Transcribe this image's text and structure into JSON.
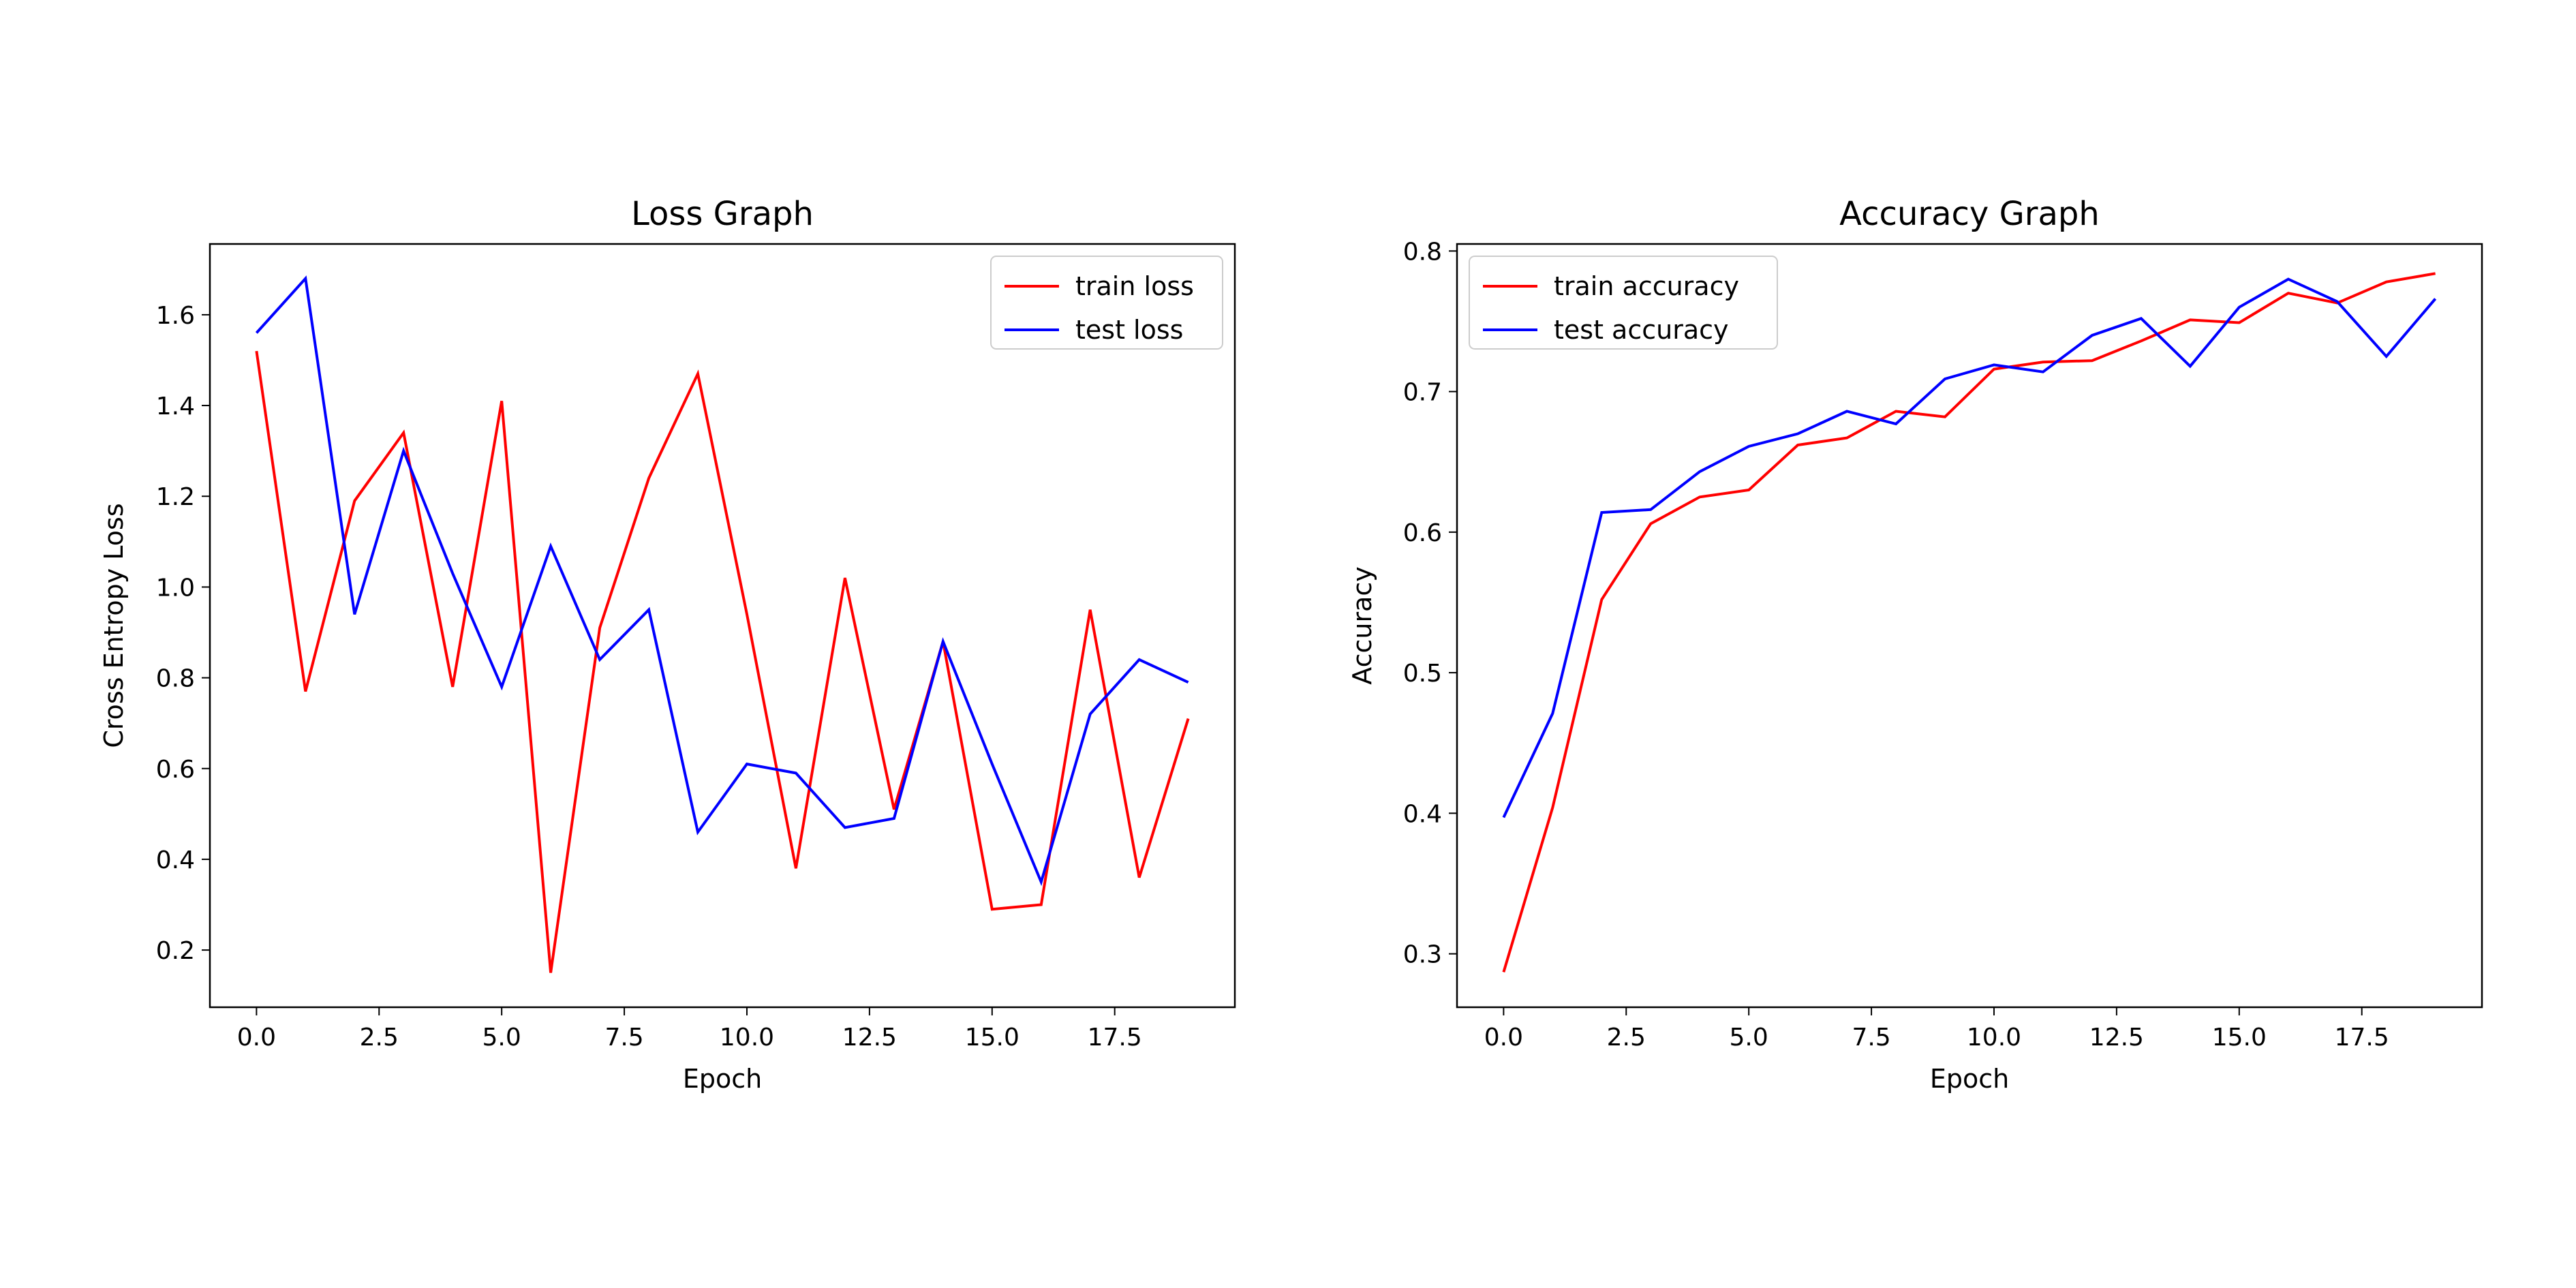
{
  "chart_data": [
    {
      "type": "line",
      "title": "Loss Graph",
      "xlabel": "Epoch",
      "ylabel": "Cross Entropy Loss",
      "xlim": [
        -0.95,
        19.95
      ],
      "ylim": [
        0.074,
        1.756
      ],
      "xticks": [
        0,
        2.5,
        5,
        7.5,
        10,
        12.5,
        15,
        17.5
      ],
      "xtick_labels": [
        "0.0",
        "2.5",
        "5.0",
        "7.5",
        "10.0",
        "12.5",
        "15.0",
        "17.5"
      ],
      "yticks": [
        0.2,
        0.4,
        0.6,
        0.8,
        1.0,
        1.2,
        1.4,
        1.6
      ],
      "ytick_labels": [
        "0.2",
        "0.4",
        "0.6",
        "0.8",
        "1.0",
        "1.2",
        "1.4",
        "1.6"
      ],
      "legend_position": "top-right",
      "grid": false,
      "x": [
        0,
        1,
        2,
        3,
        4,
        5,
        6,
        7,
        8,
        9,
        10,
        11,
        12,
        13,
        14,
        15,
        16,
        17,
        18,
        19
      ],
      "series": [
        {
          "name": "train loss",
          "color": "#ff0000",
          "values": [
            1.52,
            0.77,
            1.19,
            1.34,
            0.78,
            1.41,
            0.15,
            0.91,
            1.24,
            1.47,
            0.94,
            0.38,
            1.02,
            0.51,
            0.88,
            0.29,
            0.3,
            0.95,
            0.36,
            0.71
          ]
        },
        {
          "name": "test loss",
          "color": "#0000ff",
          "values": [
            1.56,
            1.68,
            0.94,
            1.3,
            1.03,
            0.78,
            1.09,
            0.84,
            0.95,
            0.46,
            0.61,
            0.59,
            0.47,
            0.49,
            0.88,
            0.61,
            0.35,
            0.72,
            0.84,
            0.79
          ]
        }
      ]
    },
    {
      "type": "line",
      "title": "Accuracy Graph",
      "xlabel": "Epoch",
      "ylabel": "Accuracy",
      "xlim": [
        -0.95,
        19.95
      ],
      "ylim": [
        0.262,
        0.805
      ],
      "xticks": [
        0,
        2.5,
        5,
        7.5,
        10,
        12.5,
        15,
        17.5
      ],
      "xtick_labels": [
        "0.0",
        "2.5",
        "5.0",
        "7.5",
        "10.0",
        "12.5",
        "15.0",
        "17.5"
      ],
      "yticks": [
        0.3,
        0.4,
        0.5,
        0.6,
        0.7,
        0.8
      ],
      "ytick_labels": [
        "0.3",
        "0.4",
        "0.5",
        "0.6",
        "0.7",
        "0.8"
      ],
      "legend_position": "top-left",
      "grid": false,
      "x": [
        0,
        1,
        2,
        3,
        4,
        5,
        6,
        7,
        8,
        9,
        10,
        11,
        12,
        13,
        14,
        15,
        16,
        17,
        18,
        19
      ],
      "series": [
        {
          "name": "train accuracy",
          "color": "#ff0000",
          "values": [
            0.287,
            0.404,
            0.552,
            0.606,
            0.625,
            0.63,
            0.662,
            0.667,
            0.686,
            0.682,
            0.716,
            0.721,
            0.722,
            0.736,
            0.751,
            0.749,
            0.77,
            0.763,
            0.778,
            0.784
          ]
        },
        {
          "name": "test accuracy",
          "color": "#0000ff",
          "values": [
            0.397,
            0.471,
            0.614,
            0.616,
            0.643,
            0.661,
            0.67,
            0.686,
            0.677,
            0.709,
            0.719,
            0.714,
            0.74,
            0.752,
            0.718,
            0.76,
            0.78,
            0.764,
            0.725,
            0.766
          ]
        }
      ]
    }
  ]
}
